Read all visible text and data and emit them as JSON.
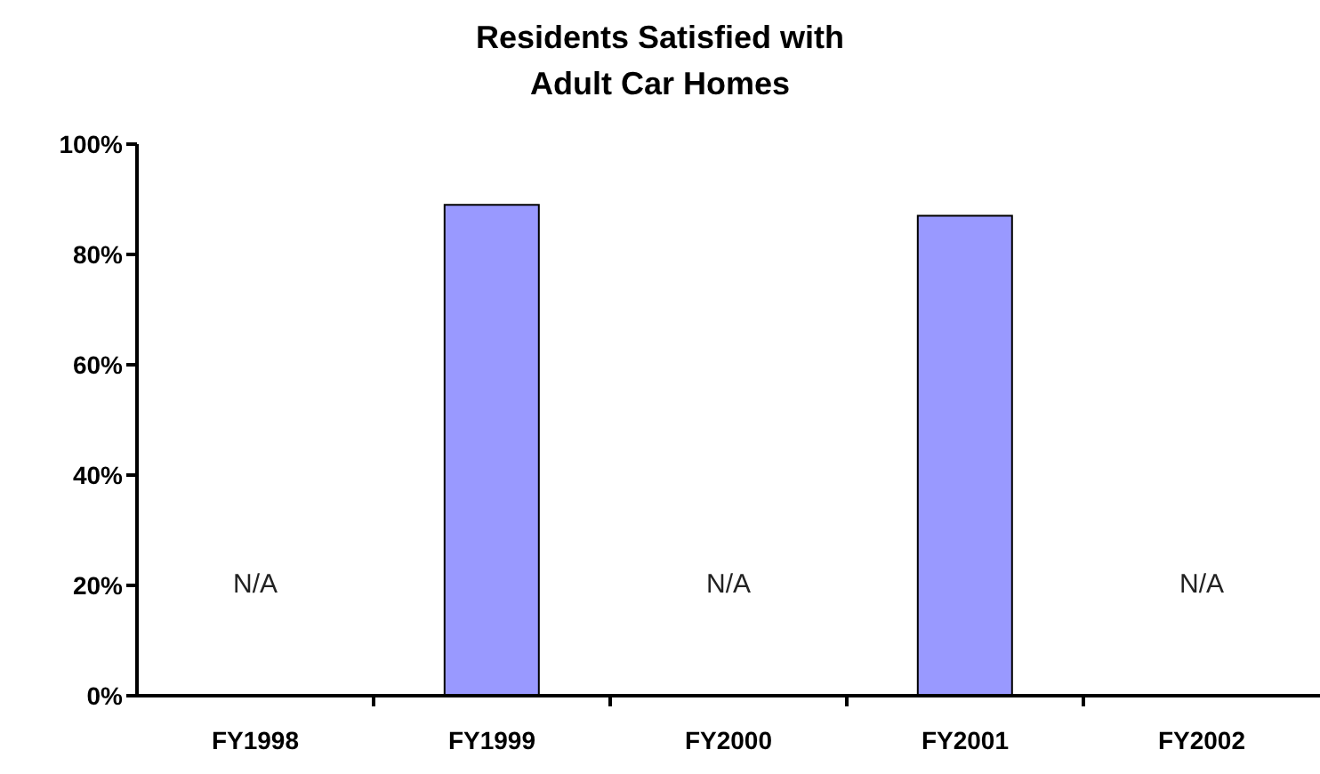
{
  "chart_data": {
    "type": "bar",
    "title": "Residents Satisfied with Adult Car Homes",
    "categories": [
      "FY1998",
      "FY1999",
      "FY2000",
      "FY2001",
      "FY2002"
    ],
    "values": [
      null,
      89,
      null,
      87,
      null
    ],
    "value_labels": [
      "N/A",
      null,
      "N/A",
      null,
      "N/A"
    ],
    "color": "#9999ff",
    "ylim": [
      0,
      100
    ],
    "yticks": [
      {
        "value": 0,
        "label": "0%"
      },
      {
        "value": 20,
        "label": "20%"
      },
      {
        "value": 40,
        "label": "40%"
      },
      {
        "value": 60,
        "label": "60%"
      },
      {
        "value": 80,
        "label": "80%"
      },
      {
        "value": 100,
        "label": "100%"
      }
    ],
    "grid": false,
    "legend": false
  }
}
